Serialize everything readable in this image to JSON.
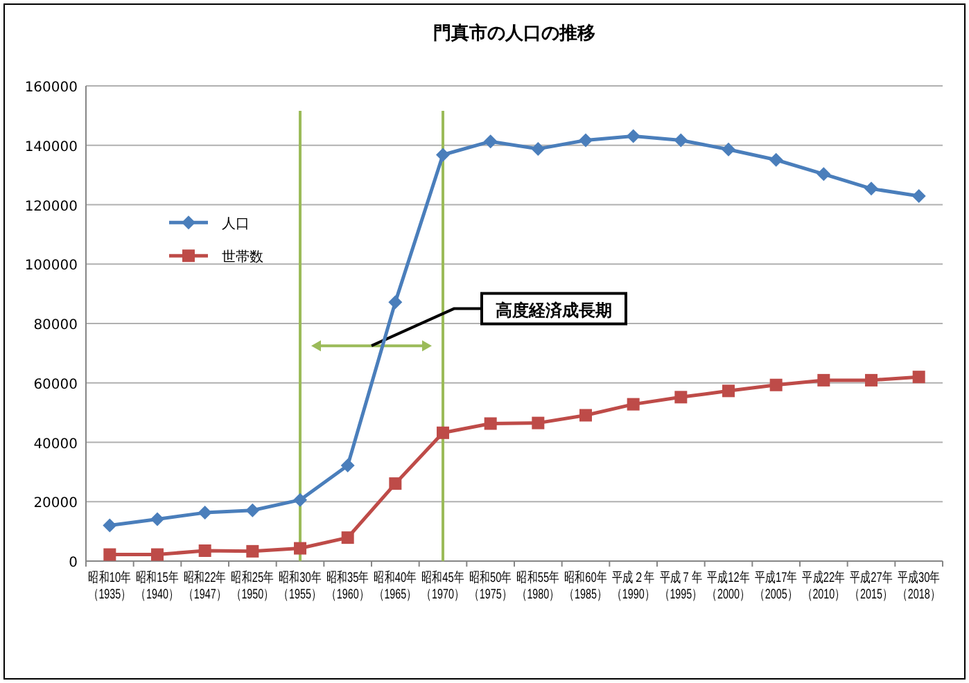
{
  "chart_data": {
    "type": "line",
    "title": "門真市の人口の推移",
    "categories": [
      "昭和10年（1935）",
      "昭和15年（1940）",
      "昭和22年（1947）",
      "昭和25年（1950）",
      "昭和30年（1955）",
      "昭和35年（1960）",
      "昭和40年（1965）",
      "昭和45年（1970）",
      "昭和50年（1975）",
      "昭和55年（1980）",
      "昭和60年（1985）",
      "平成２年（1990）",
      "平成７年（1995）",
      "平成12年（2000）",
      "平成17年（2005）",
      "平成22年（2010）",
      "平成27年（2015）",
      "平成30年（2018）"
    ],
    "series": [
      {
        "name": "人口",
        "color": "#4a7ebb",
        "marker": "diamond",
        "values": [
          12000,
          14100,
          16300,
          17100,
          20600,
          32200,
          87200,
          136800,
          141300,
          138800,
          141700,
          143100,
          141700,
          138600,
          135100,
          130300,
          125400,
          122900
        ]
      },
      {
        "name": "世帯数",
        "color": "#be4b48",
        "marker": "square",
        "values": [
          2200,
          2200,
          3500,
          3300,
          4300,
          7900,
          26100,
          43200,
          46300,
          46500,
          49100,
          52800,
          55200,
          57300,
          59300,
          60900,
          60900,
          62000
        ]
      }
    ],
    "ylim": [
      0,
      160000
    ],
    "yticks": [
      0,
      20000,
      40000,
      60000,
      80000,
      100000,
      120000,
      140000,
      160000
    ],
    "grid": "y",
    "legend": "left",
    "line_style": "solid",
    "ref_lines": [
      {
        "axis": "x",
        "value": "昭和30年（1955）",
        "color": "#9bbb59"
      },
      {
        "axis": "x",
        "value": "昭和45年（1970）",
        "color": "#9bbb59"
      }
    ],
    "annotations": [
      "高度経済成長期"
    ]
  }
}
